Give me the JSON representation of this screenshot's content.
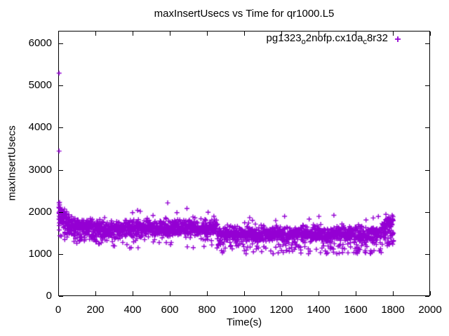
{
  "figure": {
    "background_color": "#ffffff",
    "axis_color": "#000000",
    "text_color": "#000000"
  },
  "legend": {
    "marker_glyph": "+",
    "series_label_display": "pg1323o2nofp.cx10ac8r32",
    "segments": [
      {
        "text": "pg1323",
        "subscript": false
      },
      {
        "text": "o",
        "subscript": true
      },
      {
        "text": "2nofp.cx10a",
        "subscript": false
      },
      {
        "text": "c",
        "subscript": true
      },
      {
        "text": "8r32",
        "subscript": false
      }
    ]
  },
  "chart_data": {
    "type": "scatter",
    "title": "maxInsertUsecs vs Time for qr1000.L5",
    "xlabel": "Time(s)",
    "ylabel": "maxInsertUsecs",
    "xlim": [
      0,
      2000
    ],
    "ylim": [
      0,
      6300
    ],
    "xticks": [
      0,
      200,
      400,
      600,
      800,
      1000,
      1200,
      1400,
      1600,
      1800,
      2000
    ],
    "yticks": [
      0,
      1000,
      2000,
      3000,
      4000,
      5000,
      6000
    ],
    "grid": false,
    "legend_position": "top-right-inside",
    "series": [
      {
        "name": "pg1323o2nofp.cx10ac8r32",
        "marker": "plus",
        "color": "#9400D3",
        "marker_size_px": 7,
        "x_range_of_data": [
          0,
          1800
        ],
        "outliers": [
          [
            1,
            5310
          ],
          [
            1,
            3460
          ],
          [
            1,
            2230
          ],
          [
            585,
            2230
          ],
          [
            396,
            2000
          ],
          [
            1026,
            1880
          ],
          [
            1166,
            1810
          ],
          [
            1795,
            1250
          ]
        ],
        "noise_bands": [
          {
            "x_start": 0,
            "x_end": 4,
            "count": 16,
            "y_mean_start": 1860,
            "y_mean_end": 1860,
            "y_spread": 410,
            "distribution": "uniform",
            "tails": []
          },
          {
            "x_start": 4,
            "x_end": 60,
            "count": 90,
            "y_mean_start": 1950,
            "y_mean_end": 1750,
            "y_spread": 130,
            "distribution": "gaussian",
            "tails": [
              {
                "prob": 0.08,
                "y_min": 1350,
                "y_max": 1550
              }
            ]
          },
          {
            "x_start": 60,
            "x_end": 250,
            "count": 280,
            "y_mean_start": 1700,
            "y_mean_end": 1600,
            "y_spread": 105,
            "distribution": "gaussian",
            "tails": [
              {
                "prob": 0.13,
                "y_min": 1250,
                "y_max": 1480
              }
            ]
          },
          {
            "x_start": 250,
            "x_end": 850,
            "count": 760,
            "y_mean_start": 1600,
            "y_mean_end": 1630,
            "y_spread": 100,
            "distribution": "gaussian",
            "tails": [
              {
                "prob": 0.04,
                "y_min": 1150,
                "y_max": 1450
              },
              {
                "prob": 0.008,
                "y_min": 1850,
                "y_max": 2100
              }
            ]
          },
          {
            "x_start": 850,
            "x_end": 1740,
            "count": 1050,
            "y_mean_start": 1480,
            "y_mean_end": 1490,
            "y_spread": 95,
            "distribution": "gaussian",
            "tails": [
              {
                "prob": 0.11,
                "y_min": 1020,
                "y_max": 1260
              },
              {
                "prob": 0.01,
                "y_min": 1700,
                "y_max": 1950
              }
            ]
          },
          {
            "x_start": 1740,
            "x_end": 1800,
            "count": 95,
            "y_mean_start": 1640,
            "y_mean_end": 1660,
            "y_spread": 140,
            "distribution": "gaussian",
            "tails": [
              {
                "prob": 0.05,
                "y_min": 1200,
                "y_max": 1350
              }
            ]
          }
        ],
        "random_seed": 1323
      }
    ]
  }
}
